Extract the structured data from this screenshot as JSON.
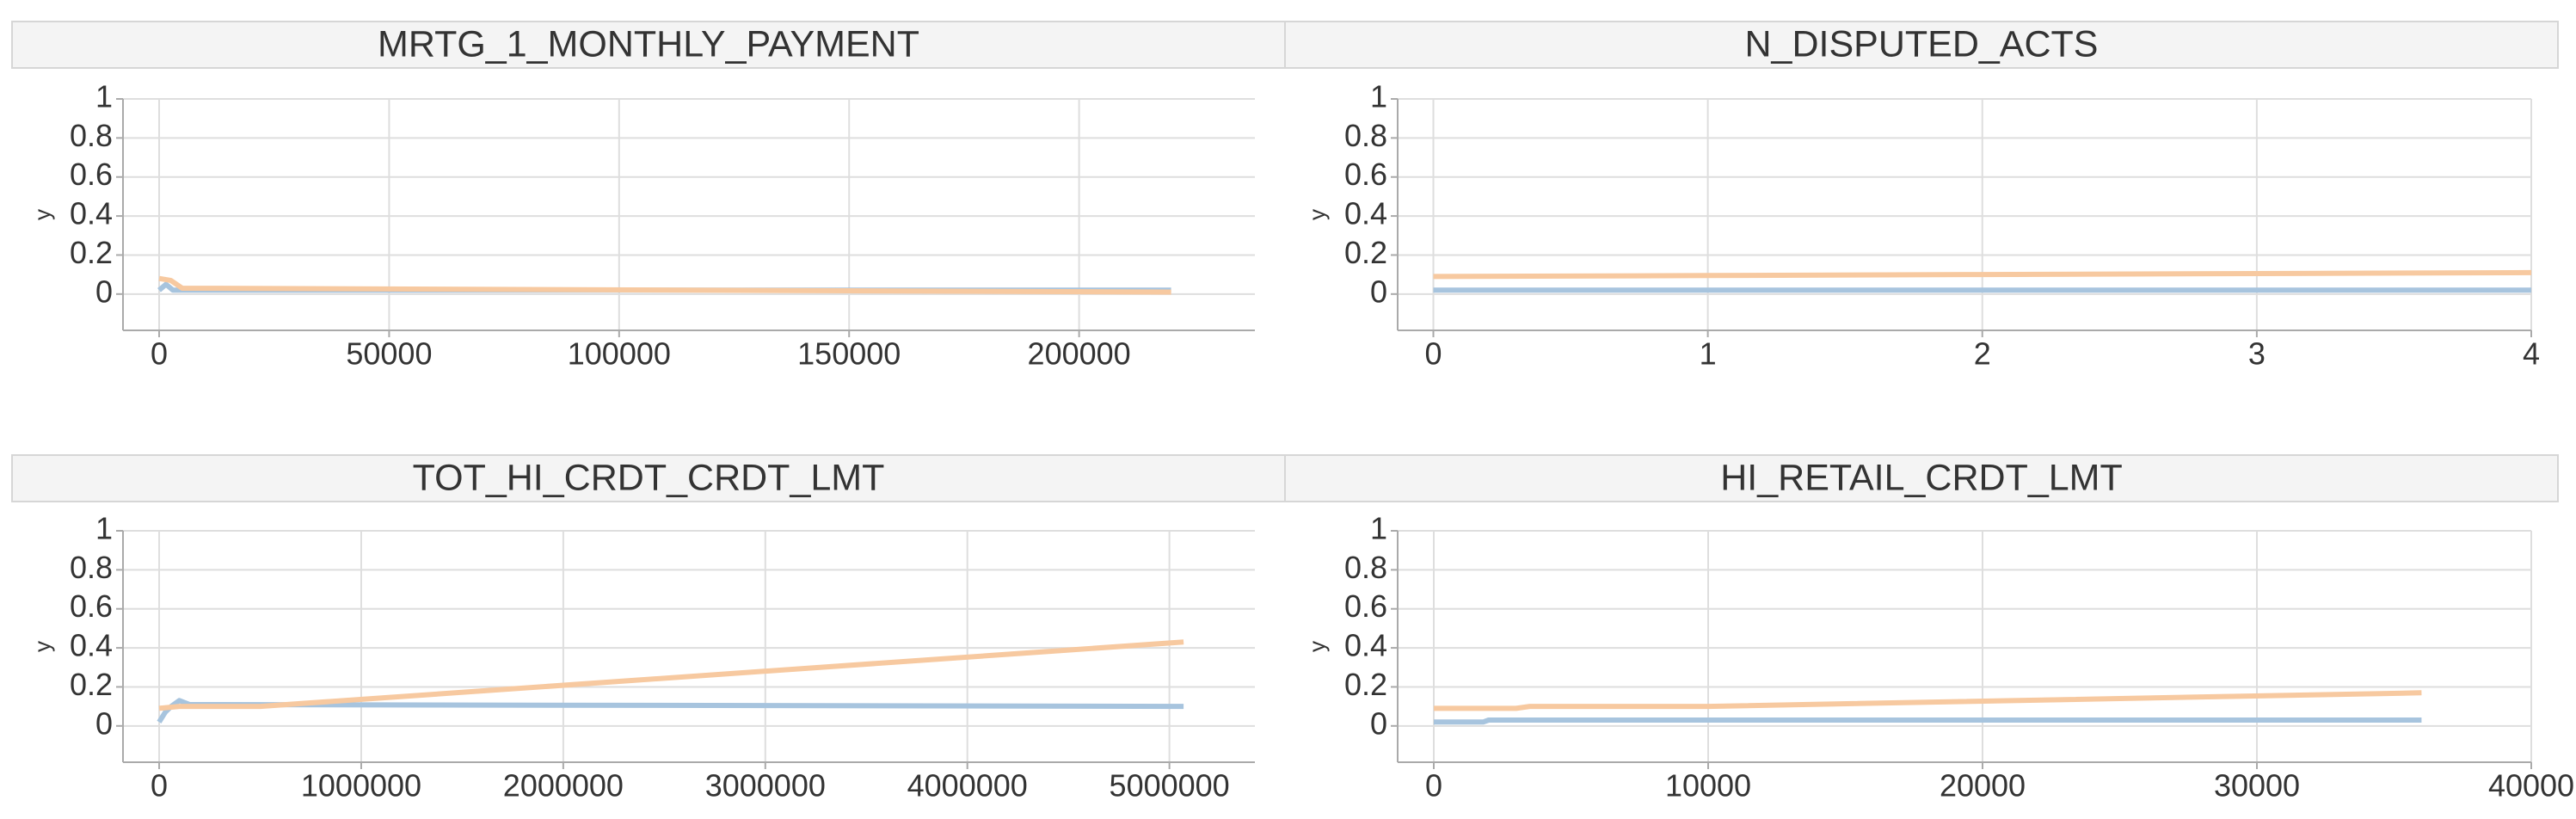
{
  "chart_data": [
    {
      "type": "line",
      "title": "MRTG_1_MONTHLY_PAYMENT",
      "y_label": "y",
      "grid": true,
      "xlim": [
        -7857,
        238214
      ],
      "xticks": [
        0,
        50000,
        100000,
        150000,
        200000
      ],
      "ylim": [
        -0.186,
        1.0
      ],
      "yticks": [
        0,
        0.2,
        0.4,
        0.6,
        0.8,
        1
      ],
      "series": [
        {
          "color": "#a7c4de",
          "x": [
            0,
            1500,
            3000,
            220000
          ],
          "values": [
            0.02,
            0.05,
            0.02,
            0.02
          ]
        },
        {
          "color": "#f7c9a0",
          "x": [
            0,
            2500,
            5000,
            220000
          ],
          "values": [
            0.08,
            0.07,
            0.03,
            0.01
          ]
        }
      ]
    },
    {
      "type": "line",
      "title": "N_DISPUTED_ACTS",
      "y_label": "y",
      "grid": true,
      "xlim": [
        -0.13,
        4.0
      ],
      "xticks": [
        0,
        1,
        2,
        3,
        4
      ],
      "ylim": [
        -0.186,
        1.0
      ],
      "yticks": [
        0,
        0.2,
        0.4,
        0.6,
        0.8,
        1
      ],
      "series": [
        {
          "color": "#a7c4de",
          "x": [
            0,
            1,
            2,
            3,
            4
          ],
          "values": [
            0.02,
            0.02,
            0.02,
            0.02,
            0.02
          ]
        },
        {
          "color": "#f7c9a0",
          "x": [
            0,
            1,
            2,
            3,
            4
          ],
          "values": [
            0.09,
            0.095,
            0.1,
            0.105,
            0.11
          ]
        }
      ]
    },
    {
      "type": "line",
      "title": "TOT_HI_CRDT_CRDT_LMT",
      "y_label": "y",
      "grid": true,
      "xlim": [
        -179000,
        5423000
      ],
      "xticks": [
        0,
        1000000,
        2000000,
        3000000,
        4000000,
        5000000
      ],
      "ylim": [
        -0.186,
        1.0
      ],
      "yticks": [
        0,
        0.2,
        0.4,
        0.6,
        0.8,
        1
      ],
      "series": [
        {
          "color": "#a7c4de",
          "x": [
            0,
            30000,
            60000,
            100000,
            150000,
            5070000
          ],
          "values": [
            0.02,
            0.07,
            0.1,
            0.13,
            0.11,
            0.1
          ]
        },
        {
          "color": "#f7c9a0",
          "x": [
            0,
            100000,
            500000,
            5070000
          ],
          "values": [
            0.09,
            0.1,
            0.1,
            0.43
          ]
        }
      ]
    },
    {
      "type": "line",
      "title": "HI_RETAIL_CRDT_LMT",
      "y_label": "y",
      "grid": true,
      "xlim": [
        -1317,
        40000
      ],
      "xticks": [
        0,
        10000,
        20000,
        30000,
        40000
      ],
      "ylim": [
        -0.186,
        1.0
      ],
      "yticks": [
        0,
        0.2,
        0.4,
        0.6,
        0.8,
        1
      ],
      "series": [
        {
          "color": "#a7c4de",
          "x": [
            0,
            1800,
            2000,
            36000
          ],
          "values": [
            0.02,
            0.02,
            0.03,
            0.03
          ]
        },
        {
          "color": "#f7c9a0",
          "x": [
            0,
            3000,
            3500,
            10000,
            36000
          ],
          "values": [
            0.09,
            0.09,
            0.1,
            0.1,
            0.17
          ]
        }
      ]
    }
  ]
}
